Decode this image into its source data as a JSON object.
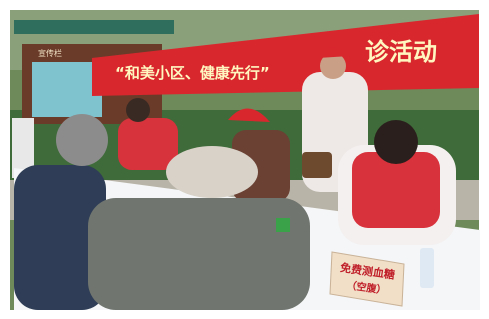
{
  "banner": {
    "slogan": "“和美小区、健康先行”",
    "activity": "诊活动"
  },
  "bulletin_board": {
    "title": "宣传栏"
  },
  "table_sign": {
    "line1": "免费测血糖",
    "line2": "（空腹）"
  }
}
